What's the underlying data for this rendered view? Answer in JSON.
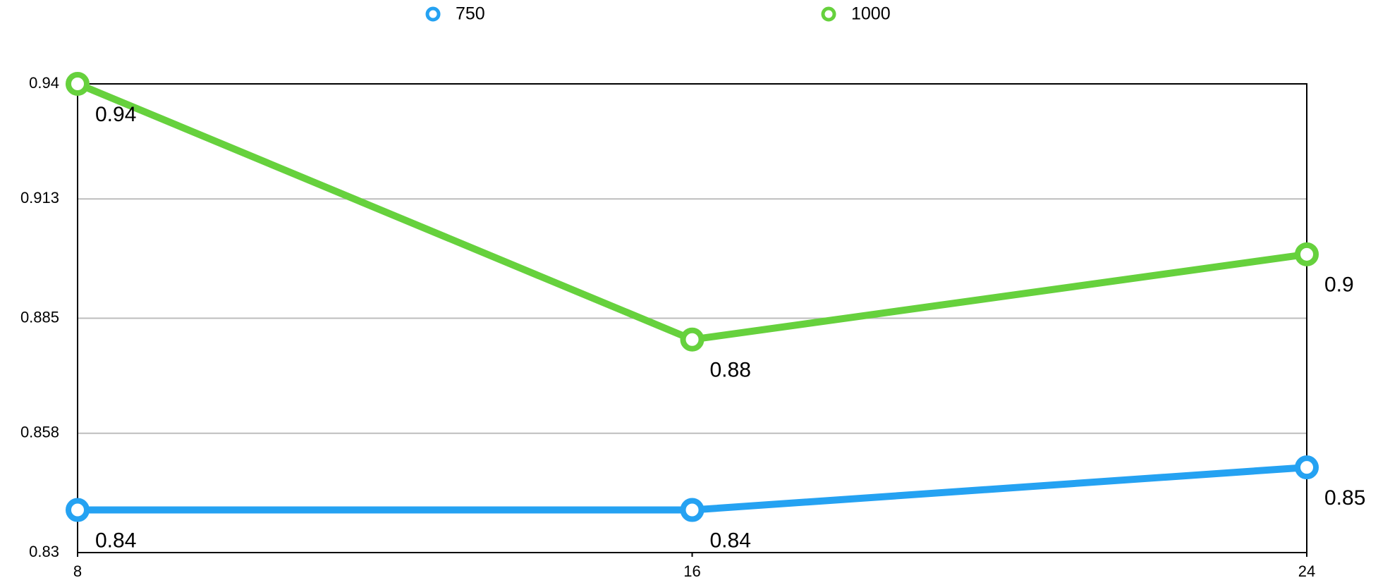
{
  "chart_data": {
    "type": "line",
    "x": [
      8,
      16,
      24
    ],
    "series": [
      {
        "name": "750",
        "color": "#25a2f2",
        "values": [
          0.84,
          0.84,
          0.85
        ]
      },
      {
        "name": "1000",
        "color": "#66d13d",
        "values": [
          0.94,
          0.88,
          0.9
        ]
      }
    ],
    "xlim": [
      8,
      24
    ],
    "xticks": [
      8,
      16,
      24
    ],
    "ylim": [
      0.83,
      0.94
    ],
    "yticks": [
      0.83,
      0.858,
      0.885,
      0.913,
      0.94
    ],
    "grid": true,
    "legend": "top",
    "data_labels": true
  }
}
